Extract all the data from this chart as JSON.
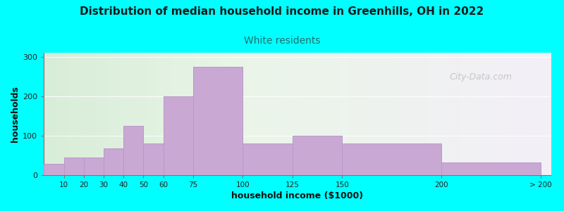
{
  "title": "Distribution of median household income in Greenhills, OH in 2022",
  "subtitle": "White residents",
  "xlabel": "household income ($1000)",
  "ylabel": "households",
  "background_color": "#00FFFF",
  "bar_color": "#c9a8d4",
  "bar_edge_color": "#b898c8",
  "values": [
    28,
    45,
    45,
    68,
    125,
    80,
    200,
    275,
    80,
    100,
    80,
    32
  ],
  "bin_edges": [
    0,
    10,
    20,
    30,
    40,
    50,
    60,
    75,
    100,
    125,
    150,
    200,
    250
  ],
  "ylim": [
    0,
    310
  ],
  "yticks": [
    0,
    100,
    200,
    300
  ],
  "tick_positions": [
    10,
    20,
    30,
    40,
    50,
    60,
    75,
    100,
    125,
    150,
    200,
    250
  ],
  "tick_labels": [
    "10",
    "20",
    "30",
    "40",
    "50",
    "60",
    "75",
    "100",
    "125",
    "150",
    "200",
    "> 200"
  ],
  "title_fontsize": 11,
  "subtitle_fontsize": 10,
  "subtitle_color": "#207070",
  "watermark": "City-Data.com",
  "grad_left": "#d8edd8",
  "grad_mid": "#eaf5e8",
  "grad_right": "#f4eff8"
}
